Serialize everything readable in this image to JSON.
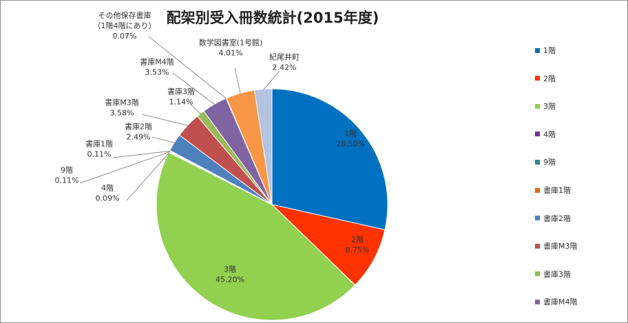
{
  "chart_data": {
    "type": "pie",
    "title": "配架別受入冊数統計(2015年度)",
    "slices": [
      {
        "name": "1階",
        "value": 28.5,
        "label": "1階",
        "pct": "28.50%",
        "color": "#0070c0"
      },
      {
        "name": "2階",
        "value": 8.75,
        "label": "2階",
        "pct": "8.75%",
        "color": "#ff3300"
      },
      {
        "name": "3階",
        "value": 45.2,
        "label": "3階",
        "pct": "45.20%",
        "color": "#92d050"
      },
      {
        "name": "4階",
        "value": 0.09,
        "label": "4階",
        "pct": "0.09%",
        "color": "#7030a0"
      },
      {
        "name": "9階",
        "value": 0.11,
        "label": "9階",
        "pct": "0.11%",
        "color": "#31859c"
      },
      {
        "name": "書庫1階",
        "value": 0.11,
        "label": "書庫1階",
        "pct": "0.11%",
        "color": "#e46c0a"
      },
      {
        "name": "書庫2階",
        "value": 2.49,
        "label": "書庫2階",
        "pct": "2.49%",
        "color": "#4f81bd"
      },
      {
        "name": "書庫M3階",
        "value": 3.58,
        "label": "書庫M3階",
        "pct": "3.58%",
        "color": "#c0504d"
      },
      {
        "name": "書庫3階",
        "value": 1.14,
        "label": "書庫3階",
        "pct": "1.14%",
        "color": "#9bbb59"
      },
      {
        "name": "書庫M4階",
        "value": 3.53,
        "label": "書庫M4階",
        "pct": "3.53%",
        "color": "#8064a2"
      },
      {
        "name": "その他保存書庫",
        "value": 0.07,
        "label": "その他保存書庫",
        "label2": "（1階4階にあり）",
        "pct": "0.07%",
        "color": "#4bacc6"
      },
      {
        "name": "数学図書室",
        "value": 4.01,
        "label": "数学図書室(1号館)",
        "pct": "4.01%",
        "color": "#f79646"
      },
      {
        "name": "紀尾井町",
        "value": 2.42,
        "label": "紀尾井町",
        "pct": "2.42%",
        "color": "#b3c3e0"
      }
    ],
    "legend": {
      "position": "right",
      "entries": [
        "1階",
        "2階",
        "3階",
        "4階",
        "9階",
        "書庫1階",
        "書庫2階",
        "書庫M3階",
        "書庫3階",
        "書庫M4階"
      ]
    }
  }
}
